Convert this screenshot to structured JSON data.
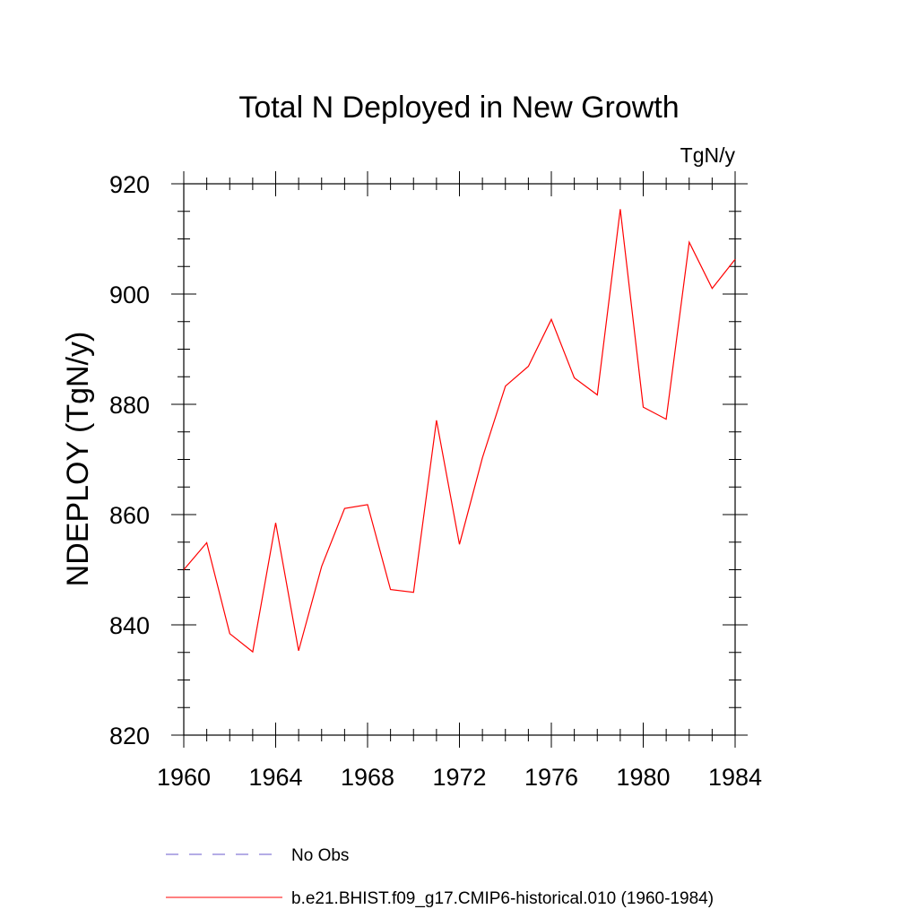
{
  "chart_data": {
    "type": "line",
    "title": "Total N Deployed in New Growth",
    "units": "TgN/y",
    "ylabel": "NDEPLOY  (TgN/y)",
    "xlabel": "",
    "xlim": [
      1960,
      1984
    ],
    "ylim": [
      820,
      920
    ],
    "x_ticks": [
      1960,
      1964,
      1968,
      1972,
      1976,
      1980,
      1984
    ],
    "y_ticks": [
      820,
      840,
      860,
      880,
      900,
      920
    ],
    "grid": false,
    "legend_position": "bottom",
    "series": [
      {
        "name": "b.e21.BHIST.f09_g17.CMIP6-historical.010 (1960-1984)",
        "color": "#ff0000",
        "dash": "solid",
        "x": [
          1960,
          1961,
          1962,
          1963,
          1964,
          1965,
          1966,
          1967,
          1968,
          1969,
          1970,
          1971,
          1972,
          1973,
          1974,
          1975,
          1976,
          1977,
          1978,
          1979,
          1980,
          1981,
          1982,
          1983,
          1984
        ],
        "y": [
          850.0,
          854.9,
          838.4,
          835.1,
          858.5,
          835.3,
          850.6,
          861.1,
          861.8,
          846.4,
          845.9,
          877.1,
          854.6,
          870.3,
          883.3,
          886.9,
          895.4,
          884.8,
          881.7,
          915.4,
          879.5,
          877.3,
          909.4,
          901.0,
          906.3
        ]
      }
    ],
    "legend": [
      {
        "label": "No Obs",
        "color": "#6a5acd",
        "dash": "dashed"
      },
      {
        "label": "b.e21.BHIST.f09_g17.CMIP6-historical.010 (1960-1984)",
        "color": "#ff0000",
        "dash": "solid"
      }
    ]
  }
}
